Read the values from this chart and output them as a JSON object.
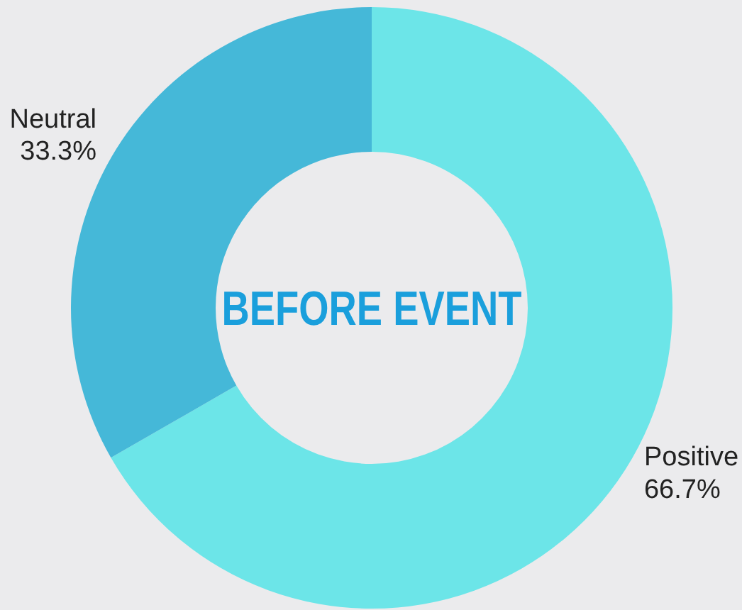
{
  "chart_data": {
    "type": "donut",
    "title": "BEFORE EVENT",
    "categories": [
      "Positive",
      "Neutral"
    ],
    "values": [
      66.7,
      33.3
    ],
    "colors": [
      "#6ce5e8",
      "#45b8d8"
    ],
    "value_labels": [
      "66.7%",
      "33.3%"
    ]
  }
}
